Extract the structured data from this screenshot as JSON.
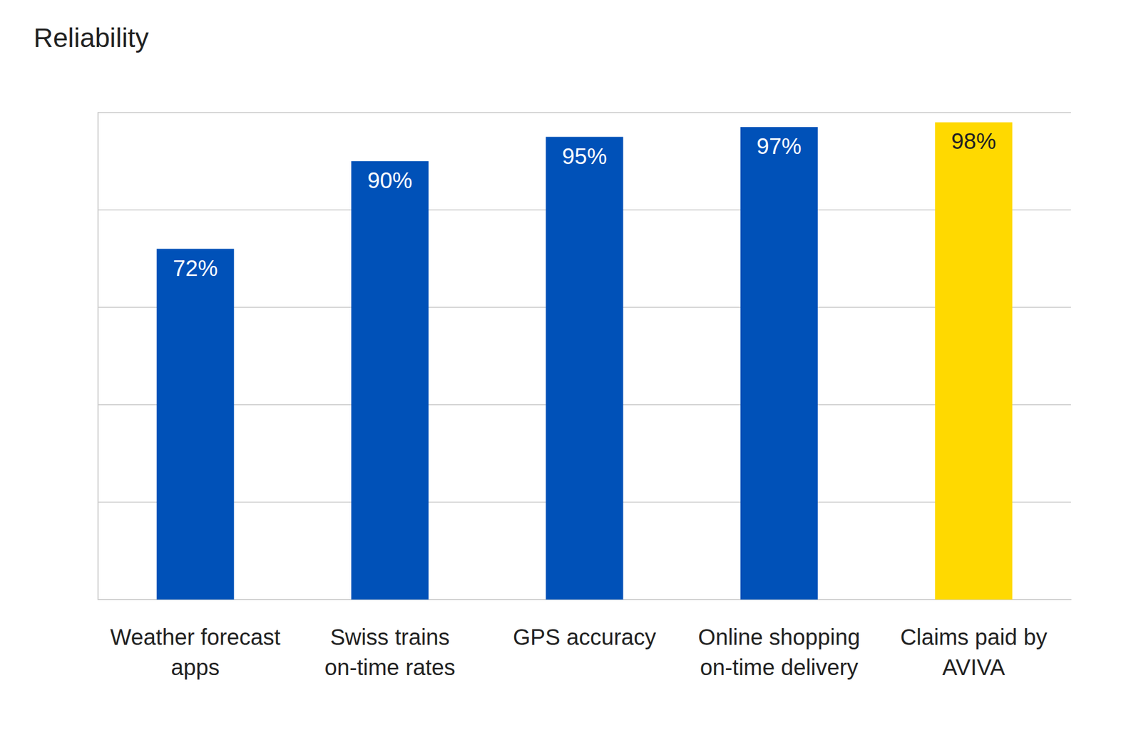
{
  "chart_data": {
    "type": "bar",
    "title": "Reliability",
    "categories": [
      "Weather forecast\napps",
      "Swiss trains\non-time rates",
      "GPS accuracy",
      "Online shopping\non-time delivery",
      "Claims paid by\nAVIVA"
    ],
    "values": [
      72,
      90,
      95,
      97,
      98
    ],
    "value_labels": [
      "72%",
      "90%",
      "95%",
      "97%",
      "98%"
    ],
    "colors": [
      "#0051b8",
      "#0051b8",
      "#0051b8",
      "#0051b8",
      "#ffd900"
    ],
    "ylim": [
      0,
      100
    ],
    "yticks": [
      0,
      20,
      40,
      60,
      80,
      100
    ],
    "grid": true,
    "data_labels": true,
    "tick_labels": "x"
  }
}
